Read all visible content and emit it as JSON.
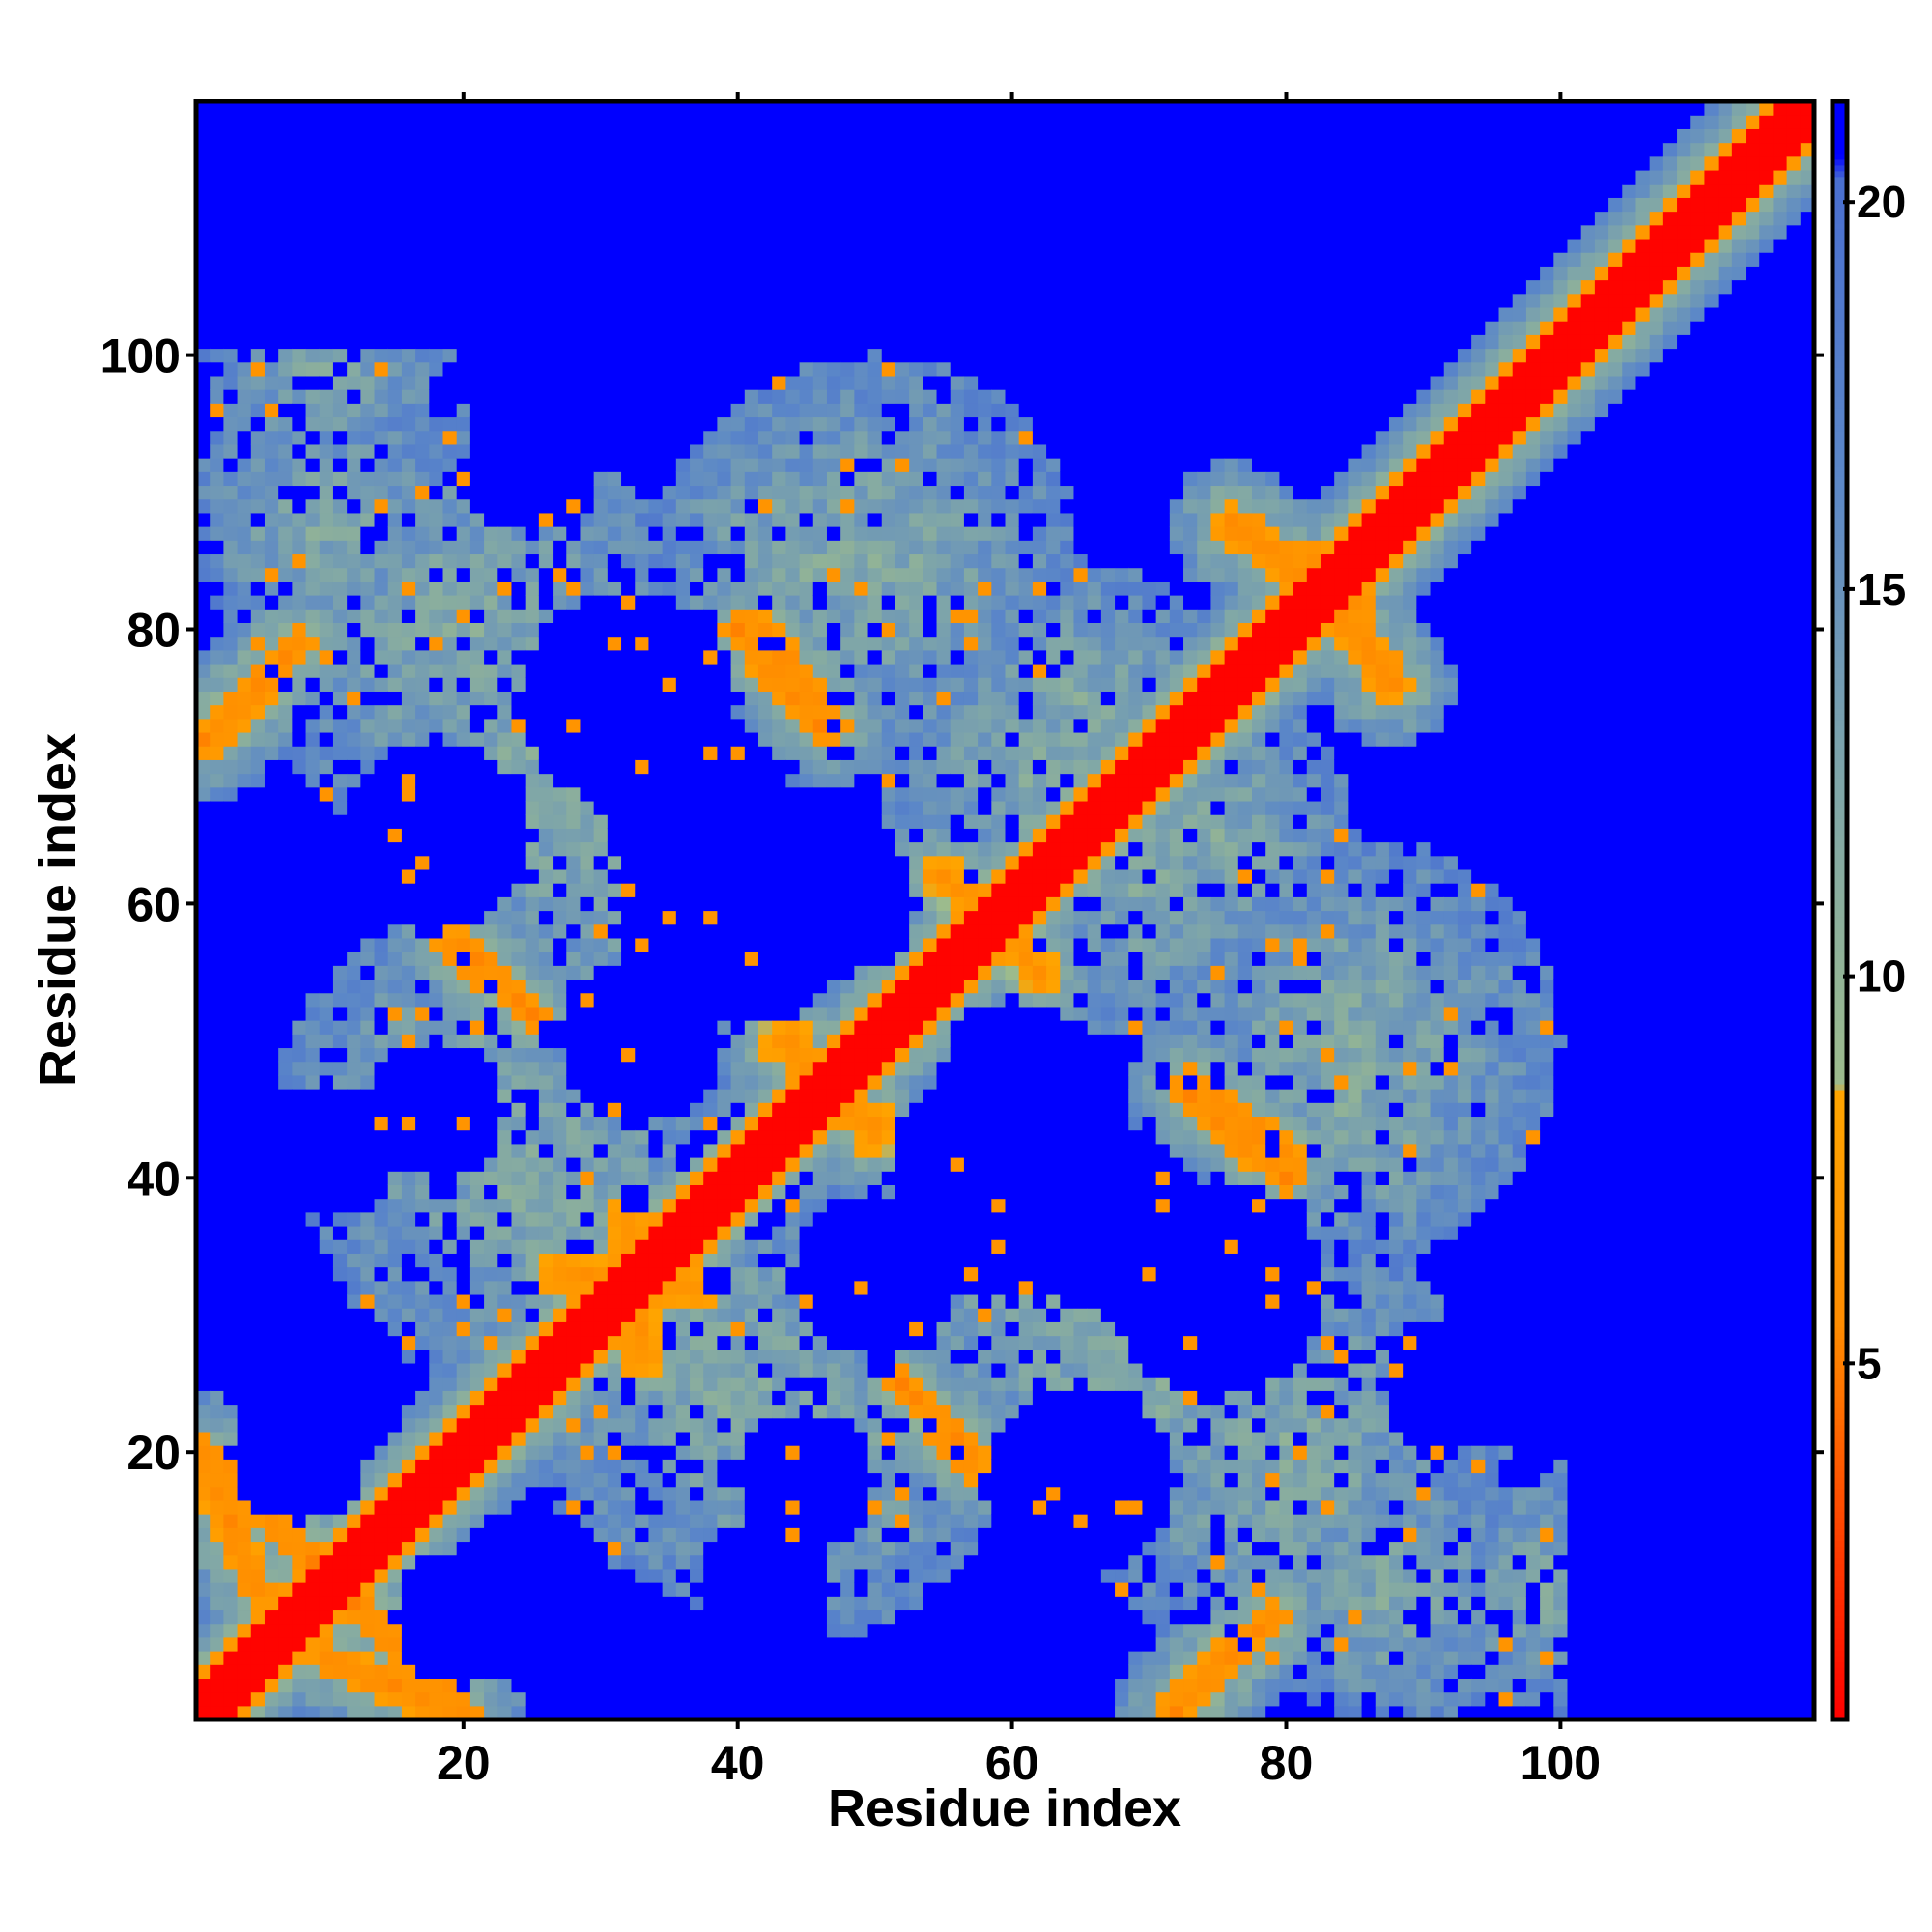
{
  "chart_data": {
    "type": "heatmap",
    "title": "",
    "xlabel": "Residue index",
    "ylabel": "Residue index",
    "n_residues": 118,
    "xlim": [
      0.5,
      118.5
    ],
    "ylim": [
      0.5,
      118.5
    ],
    "x_ticks": [
      20,
      40,
      60,
      80,
      100
    ],
    "x_tick_labels": [
      "20",
      "40",
      "60",
      "80",
      "100"
    ],
    "y_ticks": [
      20,
      40,
      60,
      80,
      100
    ],
    "y_tick_labels": [
      "20",
      "40",
      "60",
      "80",
      "100"
    ],
    "symmetric": true,
    "description_value": "pairwise residue distance",
    "colorbar": {
      "ticks": [
        5,
        10,
        15,
        20
      ],
      "tick_labels": [
        "5",
        "10",
        "15",
        "20"
      ],
      "range": [
        0.4,
        21.3
      ],
      "stops": [
        {
          "value": 0.4,
          "color": "#ff0000"
        },
        {
          "value": 5.5,
          "color": "#ff8c00"
        },
        {
          "value": 8.5,
          "color": "#ffa500"
        },
        {
          "value": 8.6,
          "color": "#9dbb8c"
        },
        {
          "value": 12.5,
          "color": "#7fa6a8"
        },
        {
          "value": 16.5,
          "color": "#5b87c8"
        },
        {
          "value": 20.3,
          "color": "#4a6fd0"
        },
        {
          "value": 20.6,
          "color": "#0000ff"
        },
        {
          "value": 21.3,
          "color": "#0000ff"
        }
      ]
    },
    "diagonal_band": {
      "core_value": 0.5,
      "core_halfwidth": 2.0,
      "orange_halfwidth": 3.0,
      "halo_halfwidth": 7.0
    },
    "contact_segments": [
      {
        "from": [
          1,
          20
        ],
        "to": [
          10,
          11
        ],
        "value": 5.0,
        "width": 1.3
      },
      {
        "from": [
          10,
          5
        ],
        "to": [
          19,
          1
        ],
        "value": 5.0,
        "width": 1.3
      },
      {
        "from": [
          2,
          72
        ],
        "to": [
          8,
          79
        ],
        "value": 5.0,
        "width": 1.3
      },
      {
        "from": [
          72,
          1
        ],
        "to": [
          79,
          8
        ],
        "value": 5.0,
        "width": 1.3
      },
      {
        "from": [
          20,
          57
        ],
        "to": [
          25,
          52
        ],
        "value": 5.0,
        "width": 1.2
      },
      {
        "from": [
          42,
          80
        ],
        "to": [
          47,
          73
        ],
        "value": 5.0,
        "width": 1.2
      },
      {
        "from": [
          53,
          24
        ],
        "to": [
          57,
          19
        ],
        "value": 5.0,
        "width": 1.2
      },
      {
        "from": [
          73,
          46
        ],
        "to": [
          80,
          40
        ],
        "value": 5.0,
        "width": 1.2
      },
      {
        "from": [
          76,
          87
        ],
        "to": [
          84,
          84
        ],
        "value": 5.0,
        "width": 1.3
      },
      {
        "from": [
          84,
          81
        ],
        "to": [
          88,
          76
        ],
        "value": 5.0,
        "width": 1.3
      },
      {
        "from": [
          43,
          50
        ],
        "to": [
          50,
          44
        ],
        "value": 5.5,
        "width": 1.5
      },
      {
        "from": [
          55,
          62
        ],
        "to": [
          62,
          55
        ],
        "value": 5.5,
        "width": 1.5
      },
      {
        "from": [
          27,
          33
        ],
        "to": [
          37,
          32
        ],
        "value": 5.5,
        "width": 1.5
      }
    ],
    "region_blobs": [
      {
        "center": [
          10,
          88
        ],
        "radius": 10,
        "value": 12
      },
      {
        "center": [
          25,
          70
        ],
        "radius": 13,
        "value": 12
      },
      {
        "center": [
          45,
          85
        ],
        "radius": 12,
        "value": 12
      },
      {
        "center": [
          62,
          70
        ],
        "radius": 12,
        "value": 12
      },
      {
        "center": [
          20,
          45
        ],
        "radius": 14,
        "value": 12
      },
      {
        "center": [
          40,
          25
        ],
        "radius": 16,
        "value": 12
      },
      {
        "center": [
          65,
          30
        ],
        "radius": 16,
        "value": 12
      },
      {
        "center": [
          80,
          20
        ],
        "radius": 16,
        "value": 12
      },
      {
        "center": [
          85,
          50
        ],
        "radius": 15,
        "value": 12
      },
      {
        "center": [
          100,
          10
        ],
        "radius": 9,
        "value": 12
      },
      {
        "center": [
          75,
          65
        ],
        "radius": 10,
        "value": 12
      }
    ],
    "blue_holes": [
      {
        "center": [
          18,
          65
        ],
        "radius": 7
      },
      {
        "center": [
          37,
          67
        ],
        "radius": 7
      },
      {
        "center": [
          48,
          60
        ],
        "radius": 5
      },
      {
        "center": [
          60,
          40
        ],
        "radius": 9
      },
      {
        "center": [
          75,
          32
        ],
        "radius": 8
      },
      {
        "center": [
          33,
          50
        ],
        "radius": 6
      },
      {
        "center": [
          25,
          10
        ],
        "radius": 6
      },
      {
        "center": [
          45,
          18
        ],
        "radius": 5
      },
      {
        "center": [
          8,
          20
        ],
        "radius": 5
      },
      {
        "center": [
          10,
          42
        ],
        "radius": 5
      },
      {
        "center": [
          80,
          98
        ],
        "radius": 4
      },
      {
        "center": [
          92,
          25
        ],
        "radius": 5
      }
    ],
    "far_region": {
      "value": 21.3
    }
  }
}
